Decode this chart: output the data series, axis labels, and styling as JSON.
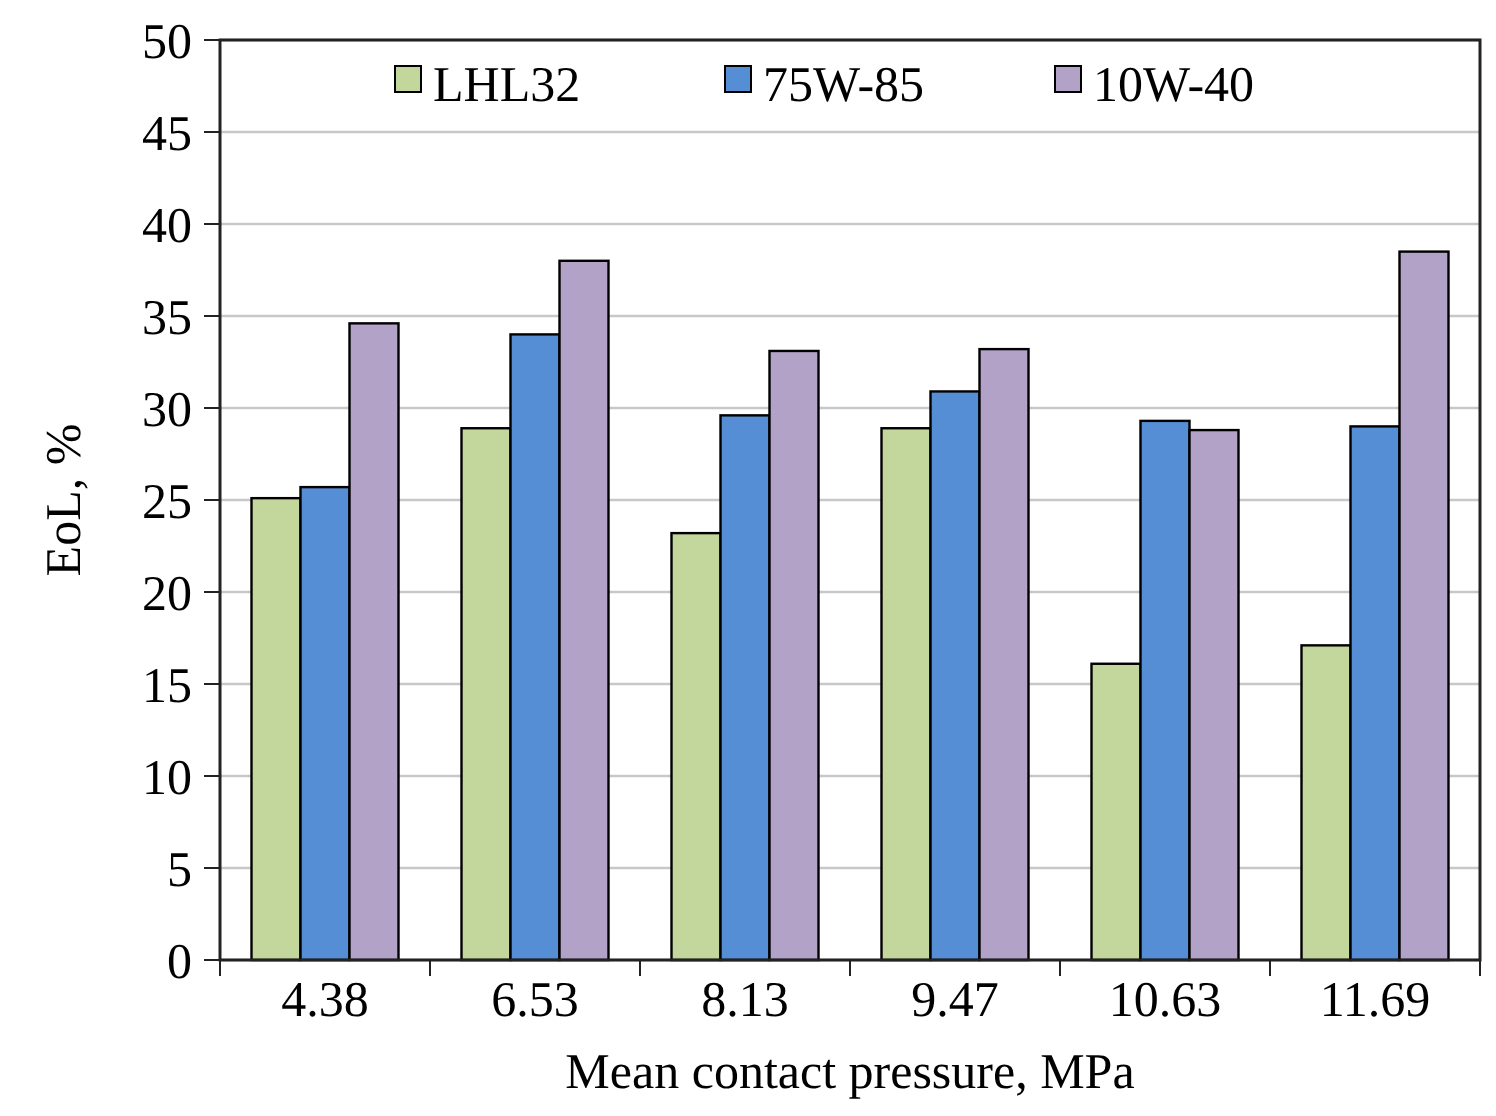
{
  "chart_data": {
    "type": "bar",
    "xlabel": "Mean contact pressure, MPa",
    "ylabel": "EoL, %",
    "categories": [
      "4.38",
      "6.53",
      "8.13",
      "9.47",
      "10.63",
      "11.69"
    ],
    "series": [
      {
        "name": "LHL32",
        "color": "#c3d69b",
        "values": [
          25.1,
          28.9,
          23.2,
          28.9,
          16.1,
          17.1
        ]
      },
      {
        "name": "75W-85",
        "color": "#558ed5",
        "values": [
          25.7,
          34.0,
          29.6,
          30.9,
          29.3,
          29.0
        ]
      },
      {
        "name": "10W-40",
        "color": "#b3a2c7",
        "values": [
          34.6,
          38.0,
          33.1,
          33.2,
          28.8,
          38.5
        ]
      }
    ],
    "ylim": [
      0,
      50
    ],
    "yticks": [
      0,
      5,
      10,
      15,
      20,
      25,
      30,
      35,
      40,
      45,
      50
    ],
    "grid": "y",
    "legend": "top"
  }
}
